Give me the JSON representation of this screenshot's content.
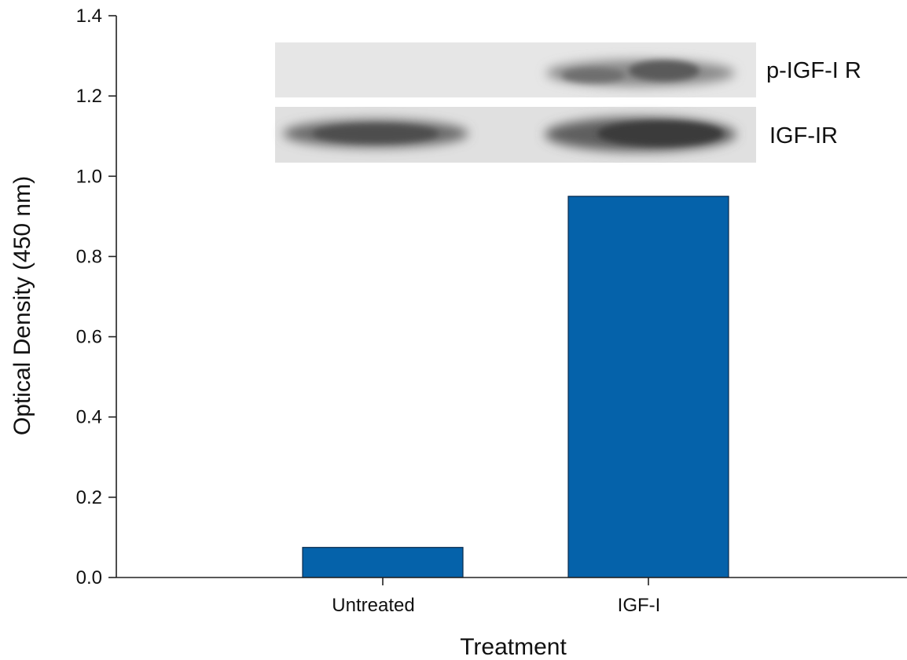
{
  "chart_data": {
    "type": "bar",
    "categories": [
      "Untreated",
      "IGF-I"
    ],
    "values": [
      0.075,
      0.95
    ],
    "xlabel": "Treatment",
    "ylabel": "Optical Density (450 nm)",
    "ylim": [
      0,
      1.4
    ],
    "yticks": [
      "0.0",
      "0.2",
      "0.4",
      "0.6",
      "0.8",
      "1.0",
      "1.2",
      "1.4"
    ],
    "grid": false,
    "bar_color": "#0562aa",
    "inset_blot": {
      "rows": [
        "p-IGF-I R",
        "IGF-IR"
      ]
    }
  }
}
